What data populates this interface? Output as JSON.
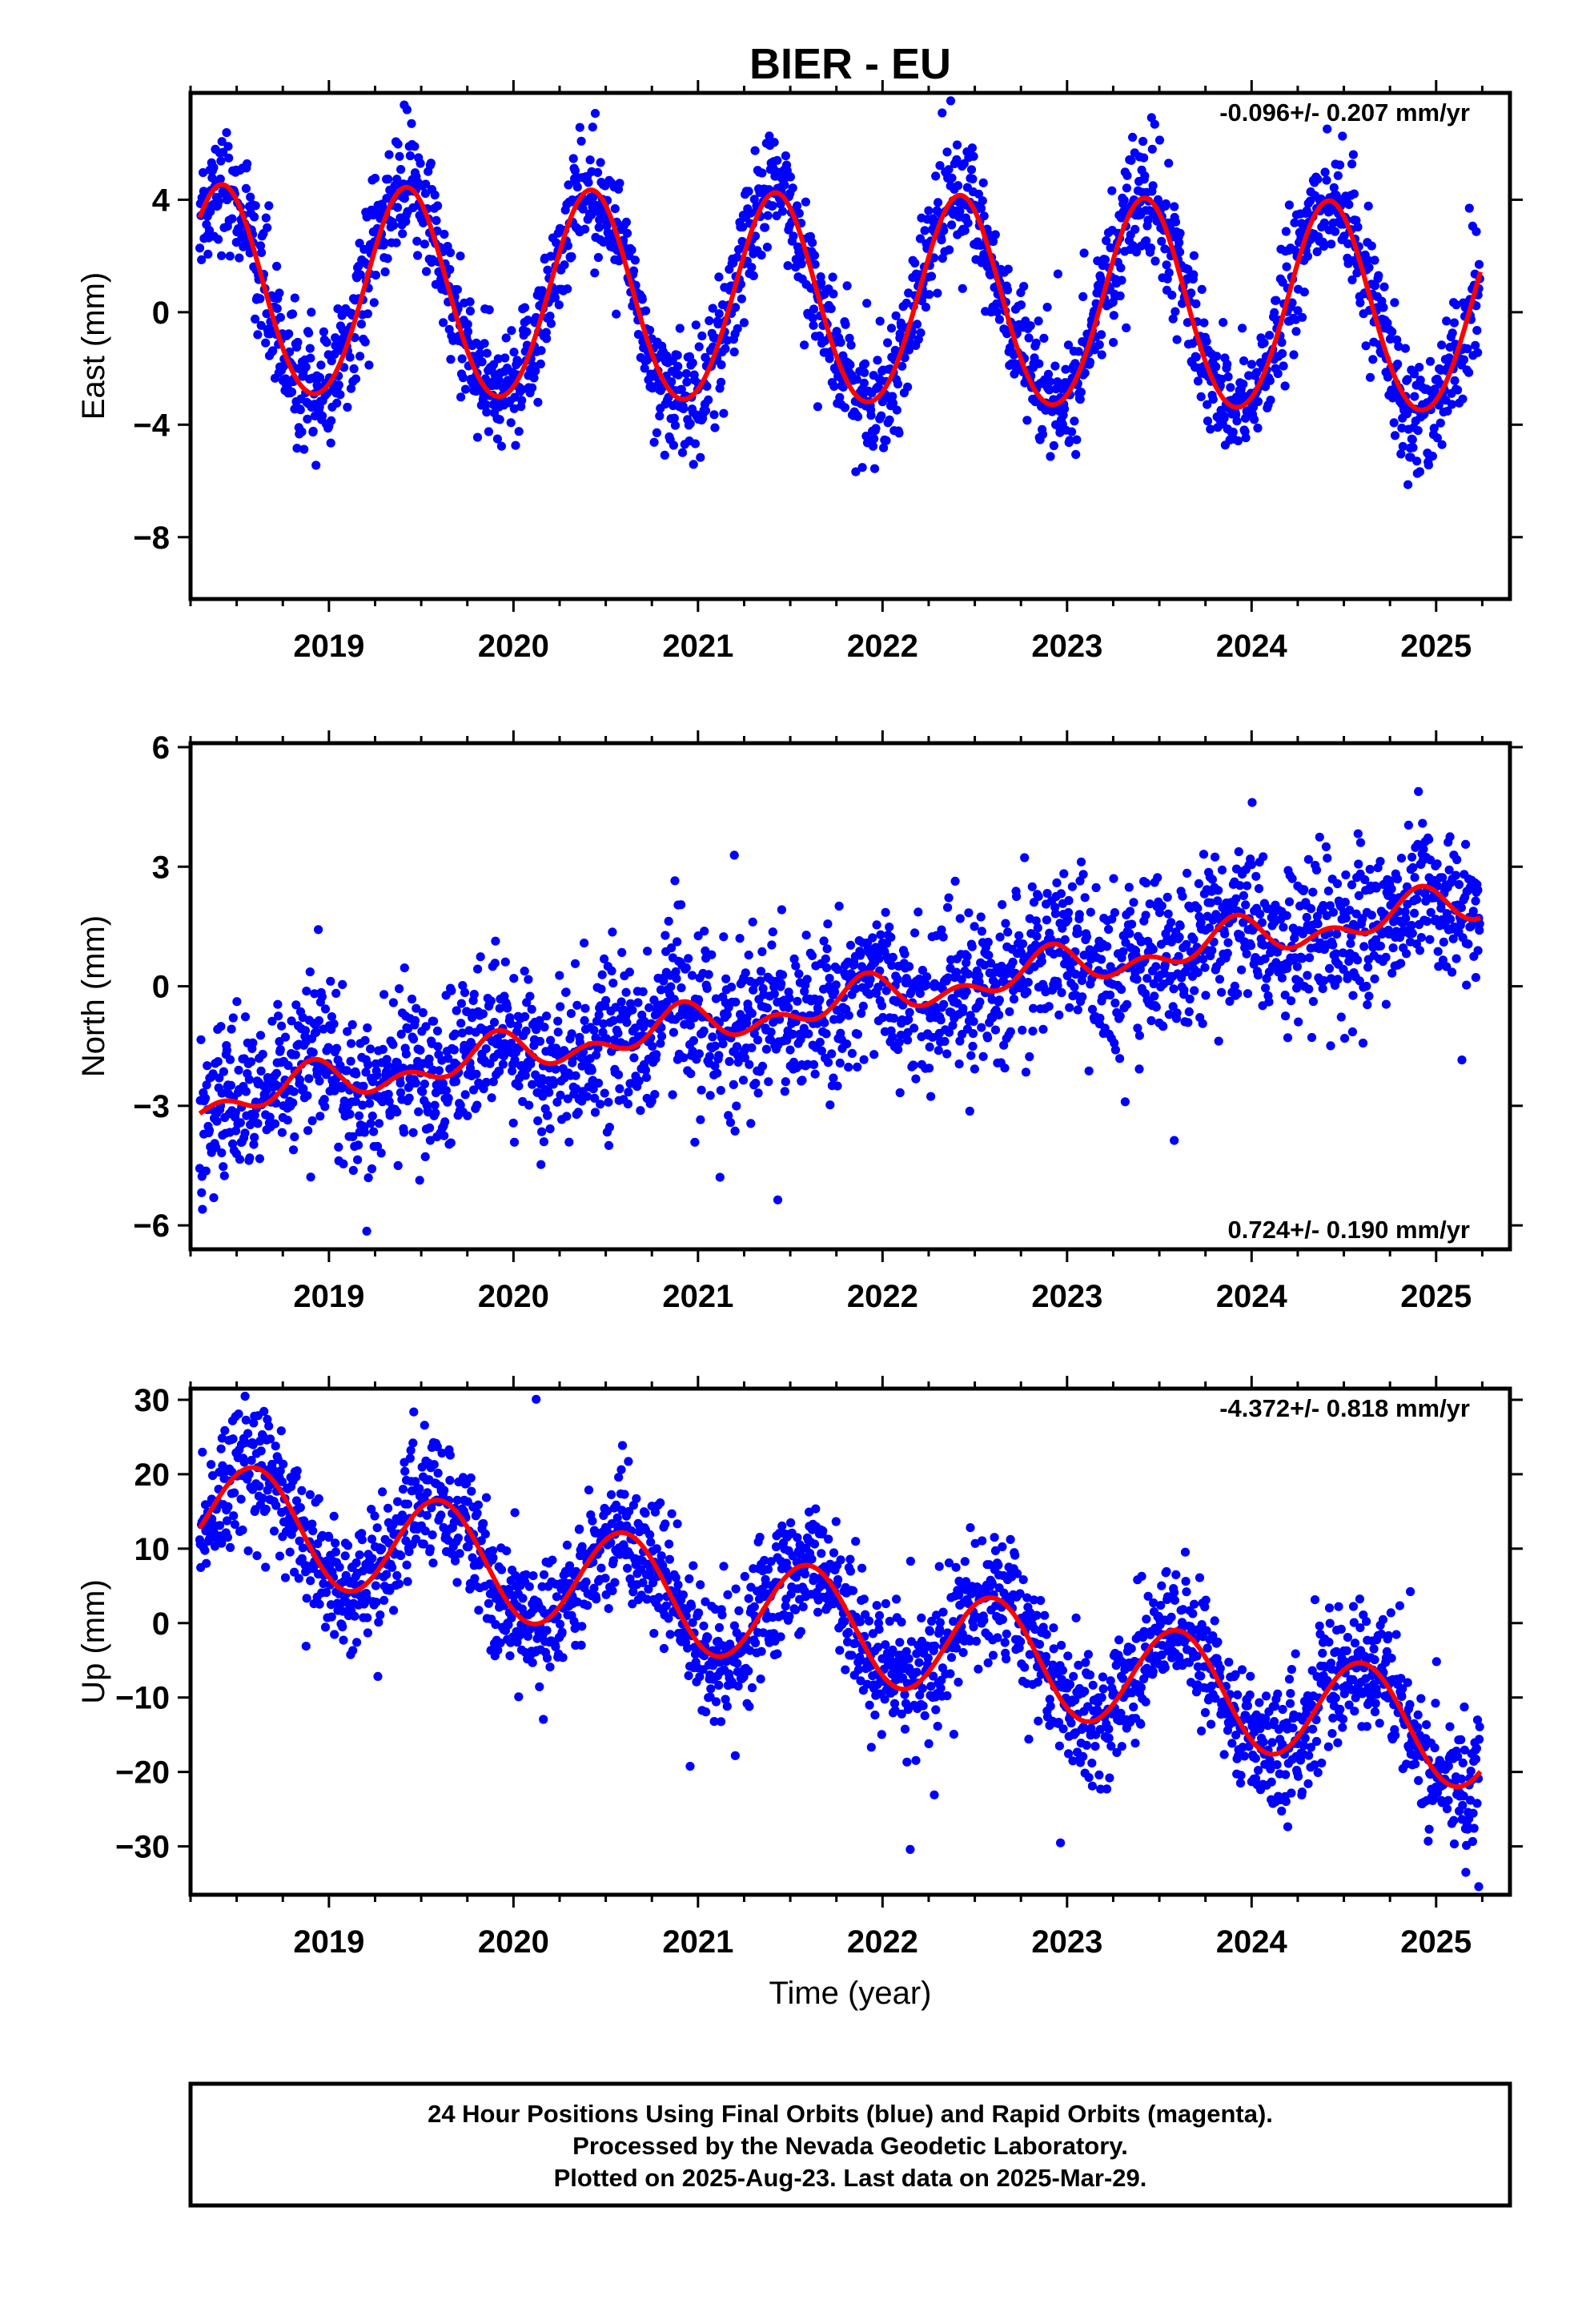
{
  "title": "BIER - EU",
  "colors": {
    "points": "#0000ff",
    "model": "#ff0000",
    "frame": "#000000"
  },
  "footer": {
    "line1": "24 Hour Positions Using Final Orbits (blue) and Rapid Orbits (magenta).",
    "line2": "Processed by the Nevada Geodetic Laboratory.",
    "line3": "Plotted on 2025-Aug-23. Last data on 2025-Mar-29."
  },
  "chart_data": [
    {
      "type": "scatter",
      "panel": "east",
      "ylabel": "East (mm)",
      "xlabel": "",
      "rate_label": "-0.096+/- 0.207 mm/yr",
      "rate_position": "top-right",
      "xlim": [
        2018.25,
        2025.4
      ],
      "ylim": [
        -10.2,
        7.8
      ],
      "xticks": [
        2019,
        2020,
        2021,
        2022,
        2023,
        2024,
        2025
      ],
      "xtick_labels": [
        "2019",
        "2020",
        "2021",
        "2022",
        "2023",
        "2024",
        "2025"
      ],
      "yticks": [
        -8,
        -4,
        0,
        4
      ],
      "ytick_labels": [
        "−8",
        "−4",
        "0",
        "4"
      ],
      "data_range": [
        2018.3,
        2025.24
      ],
      "model": {
        "offset": 0.3,
        "rate": -0.096,
        "reference_year": 2022,
        "annual_amplitude": 3.7,
        "annual_peak": 2018.42,
        "semiannual_amplitude": 0.2,
        "semiannual_peak": 2018.42
      },
      "scatter_sigma": 1.05,
      "series": [
        {
          "name": "Final Orbits (blue)",
          "kind": "points",
          "color": "#0000ff"
        },
        {
          "name": "model",
          "kind": "line",
          "color": "#ff0000"
        }
      ]
    },
    {
      "type": "scatter",
      "panel": "north",
      "ylabel": "North (mm)",
      "xlabel": "",
      "rate_label": "0.724+/- 0.190 mm/yr",
      "rate_position": "bottom-right",
      "xlim": [
        2018.25,
        2025.4
      ],
      "ylim": [
        -6.6,
        6.1
      ],
      "xticks": [
        2019,
        2020,
        2021,
        2022,
        2023,
        2024,
        2025
      ],
      "xtick_labels": [
        "2019",
        "2020",
        "2021",
        "2022",
        "2023",
        "2024",
        "2025"
      ],
      "yticks": [
        -6,
        -3,
        0,
        3,
        6
      ],
      "ytick_labels": [
        "−6",
        "−3",
        "0",
        "3",
        "6"
      ],
      "data_range": [
        2018.3,
        2025.24
      ],
      "model": {
        "offset": -0.25,
        "rate": 0.724,
        "reference_year": 2022,
        "annual_amplitude": 0.35,
        "annual_peak": 2018.9,
        "semiannual_amplitude": 0.3,
        "semiannual_peak": 2018.92
      },
      "scatter_sigma": 0.95,
      "series": [
        {
          "name": "Final Orbits (blue)",
          "kind": "points",
          "color": "#0000ff"
        },
        {
          "name": "model",
          "kind": "line",
          "color": "#ff0000"
        }
      ]
    },
    {
      "type": "scatter",
      "panel": "up",
      "ylabel": "Up (mm)",
      "xlabel": "Time (year)",
      "rate_label": "-4.372+/- 0.818 mm/yr",
      "rate_position": "top-right",
      "xlim": [
        2018.25,
        2025.4
      ],
      "ylim": [
        -36.5,
        31.5
      ],
      "xticks": [
        2019,
        2020,
        2021,
        2022,
        2023,
        2024,
        2025
      ],
      "xtick_labels": [
        "2019",
        "2020",
        "2021",
        "2022",
        "2023",
        "2024",
        "2025"
      ],
      "yticks": [
        -30,
        -20,
        -10,
        0,
        10,
        20,
        30
      ],
      "ytick_labels": [
        "−30",
        "−20",
        "−10",
        "0",
        "10",
        "20",
        "30"
      ],
      "data_range": [
        2018.3,
        2025.24
      ],
      "model": {
        "offset": -1.2,
        "rate": -4.372,
        "reference_year": 2022,
        "annual_amplitude": 7.2,
        "annual_peak": 2018.6,
        "semiannual_amplitude": 0.0,
        "semiannual_peak": 2018.6
      },
      "scatter_sigma": 4.2,
      "series": [
        {
          "name": "Final Orbits (blue)",
          "kind": "points",
          "color": "#0000ff"
        },
        {
          "name": "model",
          "kind": "line",
          "color": "#ff0000"
        }
      ]
    }
  ]
}
